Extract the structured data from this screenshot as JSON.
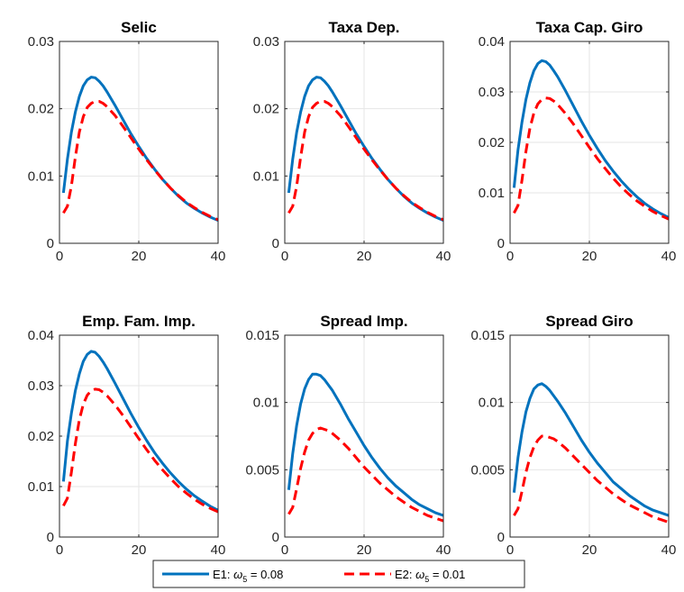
{
  "colors": {
    "e1": "#0072BD",
    "e2": "#FF0000",
    "grid": "#e6e6e6",
    "axis": "#262626"
  },
  "legend": {
    "placement": "bottom-center",
    "e1": {
      "prefix": "E1: ",
      "omega": "ω",
      "sub": "5",
      "value": " = 0.08"
    },
    "e2": {
      "prefix": "E2: ",
      "omega": "ω",
      "sub": "5",
      "value": " = 0.01"
    }
  },
  "chart_data": [
    {
      "type": "line",
      "title": "Selic",
      "xlim": [
        0,
        40
      ],
      "ylim": [
        0,
        0.03
      ],
      "xticks": [
        0,
        20,
        40
      ],
      "yticks": [
        0,
        0.01,
        0.02,
        0.03
      ],
      "yticklabels": [
        "0",
        "0.01",
        "0.02",
        "0.03"
      ],
      "grid": true,
      "series": [
        {
          "name": "E1: ω5 = 0.08",
          "style": "solid",
          "x": [
            1,
            2,
            3,
            4,
            5,
            6,
            7,
            8,
            9,
            10,
            11,
            12,
            14,
            16,
            18,
            20,
            22,
            24,
            26,
            28,
            30,
            32,
            34,
            36,
            38,
            40
          ],
          "y": [
            0.0075,
            0.0125,
            0.0165,
            0.0195,
            0.0218,
            0.0234,
            0.0243,
            0.0247,
            0.0246,
            0.0241,
            0.0234,
            0.0225,
            0.0205,
            0.0184,
            0.0163,
            0.0144,
            0.0126,
            0.011,
            0.0095,
            0.0082,
            0.007,
            0.006,
            0.0052,
            0.0045,
            0.0039,
            0.0034
          ]
        },
        {
          "name": "E2: ω5 = 0.01",
          "style": "dashed",
          "x": [
            1,
            2,
            3,
            4,
            5,
            6,
            7,
            8,
            9,
            10,
            11,
            12,
            14,
            16,
            18,
            20,
            22,
            24,
            26,
            28,
            30,
            32,
            34,
            36,
            38,
            40
          ],
          "y": [
            0.0045,
            0.0055,
            0.0085,
            0.0128,
            0.0165,
            0.0188,
            0.0202,
            0.0208,
            0.0211,
            0.0211,
            0.0208,
            0.0203,
            0.019,
            0.0174,
            0.0157,
            0.014,
            0.0124,
            0.0109,
            0.0095,
            0.0082,
            0.0071,
            0.0061,
            0.0053,
            0.0046,
            0.004,
            0.0035
          ]
        }
      ]
    },
    {
      "type": "line",
      "title": "Taxa Dep.",
      "xlim": [
        0,
        40
      ],
      "ylim": [
        0,
        0.03
      ],
      "xticks": [
        0,
        20,
        40
      ],
      "yticks": [
        0,
        0.01,
        0.02,
        0.03
      ],
      "yticklabels": [
        "0",
        "0.01",
        "0.02",
        "0.03"
      ],
      "grid": true,
      "series": [
        {
          "name": "E1: ω5 = 0.08",
          "style": "solid",
          "x": [
            1,
            2,
            3,
            4,
            5,
            6,
            7,
            8,
            9,
            10,
            11,
            12,
            14,
            16,
            18,
            20,
            22,
            24,
            26,
            28,
            30,
            32,
            34,
            36,
            38,
            40
          ],
          "y": [
            0.0075,
            0.0125,
            0.0165,
            0.0195,
            0.0218,
            0.0234,
            0.0243,
            0.0247,
            0.0246,
            0.0241,
            0.0234,
            0.0225,
            0.0205,
            0.0184,
            0.0163,
            0.0144,
            0.0126,
            0.011,
            0.0095,
            0.0082,
            0.007,
            0.006,
            0.0052,
            0.0045,
            0.0039,
            0.0034
          ]
        },
        {
          "name": "E2: ω5 = 0.01",
          "style": "dashed",
          "x": [
            1,
            2,
            3,
            4,
            5,
            6,
            7,
            8,
            9,
            10,
            11,
            12,
            14,
            16,
            18,
            20,
            22,
            24,
            26,
            28,
            30,
            32,
            34,
            36,
            38,
            40
          ],
          "y": [
            0.0045,
            0.0055,
            0.0085,
            0.0128,
            0.0165,
            0.0188,
            0.0202,
            0.0208,
            0.0211,
            0.0211,
            0.0208,
            0.0203,
            0.019,
            0.0174,
            0.0157,
            0.014,
            0.0124,
            0.0109,
            0.0095,
            0.0082,
            0.0071,
            0.0061,
            0.0053,
            0.0046,
            0.004,
            0.0035
          ]
        }
      ]
    },
    {
      "type": "line",
      "title": "Taxa Cap. Giro",
      "xlim": [
        0,
        40
      ],
      "ylim": [
        0,
        0.04
      ],
      "xticks": [
        0,
        20,
        40
      ],
      "yticks": [
        0,
        0.01,
        0.02,
        0.03,
        0.04
      ],
      "yticklabels": [
        "0",
        "0.01",
        "0.02",
        "0.03",
        "0.04"
      ],
      "grid": true,
      "series": [
        {
          "name": "E1: ω5 = 0.08",
          "style": "solid",
          "x": [
            1,
            2,
            3,
            4,
            5,
            6,
            7,
            8,
            9,
            10,
            11,
            12,
            14,
            16,
            18,
            20,
            22,
            24,
            26,
            28,
            30,
            32,
            34,
            36,
            38,
            40
          ],
          "y": [
            0.011,
            0.0185,
            0.024,
            0.0285,
            0.0318,
            0.0342,
            0.0356,
            0.0362,
            0.036,
            0.0353,
            0.0342,
            0.033,
            0.0302,
            0.0272,
            0.0242,
            0.0214,
            0.0188,
            0.0164,
            0.0143,
            0.0124,
            0.0107,
            0.0092,
            0.0079,
            0.0068,
            0.0059,
            0.0051
          ]
        },
        {
          "name": "E2: ω5 = 0.01",
          "style": "dashed",
          "x": [
            1,
            2,
            3,
            4,
            5,
            6,
            7,
            8,
            9,
            10,
            11,
            12,
            14,
            16,
            18,
            20,
            22,
            24,
            26,
            28,
            30,
            32,
            34,
            36,
            38,
            40
          ],
          "y": [
            0.006,
            0.0075,
            0.0125,
            0.0182,
            0.0228,
            0.0258,
            0.0276,
            0.0285,
            0.0288,
            0.0287,
            0.0282,
            0.0275,
            0.0257,
            0.0236,
            0.0213,
            0.019,
            0.0168,
            0.0148,
            0.0129,
            0.0112,
            0.0097,
            0.0084,
            0.0073,
            0.0063,
            0.0055,
            0.0048
          ]
        }
      ]
    },
    {
      "type": "line",
      "title": "Emp. Fam. Imp.",
      "xlim": [
        0,
        40
      ],
      "ylim": [
        0,
        0.04
      ],
      "xticks": [
        0,
        20,
        40
      ],
      "yticks": [
        0,
        0.01,
        0.02,
        0.03,
        0.04
      ],
      "yticklabels": [
        "0",
        "0.01",
        "0.02",
        "0.03",
        "0.04"
      ],
      "grid": true,
      "series": [
        {
          "name": "E1: ω5 = 0.08",
          "style": "solid",
          "x": [
            1,
            2,
            3,
            4,
            5,
            6,
            7,
            8,
            9,
            10,
            11,
            12,
            14,
            16,
            18,
            20,
            22,
            24,
            26,
            28,
            30,
            32,
            34,
            36,
            38,
            40
          ],
          "y": [
            0.011,
            0.019,
            0.0245,
            0.029,
            0.0323,
            0.0348,
            0.0362,
            0.0368,
            0.0366,
            0.0358,
            0.0347,
            0.0334,
            0.0305,
            0.0275,
            0.0245,
            0.0217,
            0.0191,
            0.0167,
            0.0146,
            0.0127,
            0.011,
            0.0095,
            0.0082,
            0.0071,
            0.0061,
            0.0053
          ]
        },
        {
          "name": "E2: ω5 = 0.01",
          "style": "dashed",
          "x": [
            1,
            2,
            3,
            4,
            5,
            6,
            7,
            8,
            9,
            10,
            11,
            12,
            14,
            16,
            18,
            20,
            22,
            24,
            26,
            28,
            30,
            32,
            34,
            36,
            38,
            40
          ],
          "y": [
            0.0062,
            0.0077,
            0.0128,
            0.0185,
            0.0232,
            0.0263,
            0.0281,
            0.029,
            0.0293,
            0.0292,
            0.0287,
            0.028,
            0.0262,
            0.0241,
            0.0218,
            0.0195,
            0.0173,
            0.0152,
            0.0133,
            0.0116,
            0.01,
            0.0087,
            0.0075,
            0.0065,
            0.0057,
            0.005
          ]
        }
      ]
    },
    {
      "type": "line",
      "title": "Spread Imp.",
      "xlim": [
        0,
        40
      ],
      "ylim": [
        0,
        0.015
      ],
      "xticks": [
        0,
        20,
        40
      ],
      "yticks": [
        0,
        0.005,
        0.01,
        0.015
      ],
      "yticklabels": [
        "0",
        "0.005",
        "0.01",
        "0.015"
      ],
      "grid": true,
      "series": [
        {
          "name": "E1: ω5 = 0.08",
          "style": "solid",
          "x": [
            1,
            2,
            3,
            4,
            5,
            6,
            7,
            8,
            9,
            10,
            11,
            12,
            14,
            16,
            18,
            20,
            22,
            24,
            26,
            28,
            30,
            32,
            34,
            36,
            38,
            40
          ],
          "y": [
            0.0035,
            0.0062,
            0.0083,
            0.0099,
            0.011,
            0.0117,
            0.0121,
            0.0121,
            0.012,
            0.0117,
            0.0113,
            0.0109,
            0.0099,
            0.0088,
            0.0078,
            0.0068,
            0.0059,
            0.0051,
            0.0044,
            0.0038,
            0.0033,
            0.0028,
            0.0024,
            0.0021,
            0.0018,
            0.0016
          ]
        },
        {
          "name": "E2: ω5 = 0.01",
          "style": "dashed",
          "x": [
            1,
            2,
            3,
            4,
            5,
            6,
            7,
            8,
            9,
            10,
            11,
            12,
            14,
            16,
            18,
            20,
            22,
            24,
            26,
            28,
            30,
            32,
            34,
            36,
            38,
            40
          ],
          "y": [
            0.0017,
            0.0022,
            0.0036,
            0.0051,
            0.0063,
            0.0072,
            0.0077,
            0.008,
            0.0081,
            0.008,
            0.0079,
            0.0077,
            0.0072,
            0.0066,
            0.0059,
            0.0052,
            0.0046,
            0.004,
            0.0035,
            0.003,
            0.0026,
            0.0022,
            0.0019,
            0.0016,
            0.0014,
            0.0012
          ]
        }
      ]
    },
    {
      "type": "line",
      "title": "Spread Giro",
      "xlim": [
        0,
        40
      ],
      "ylim": [
        0,
        0.015
      ],
      "xticks": [
        0,
        20,
        40
      ],
      "yticks": [
        0,
        0.005,
        0.01,
        0.015
      ],
      "yticklabels": [
        "0",
        "0.005",
        "0.01",
        "0.015"
      ],
      "grid": true,
      "series": [
        {
          "name": "E1: ω5 = 0.08",
          "style": "solid",
          "x": [
            1,
            2,
            3,
            4,
            5,
            6,
            7,
            8,
            9,
            10,
            11,
            12,
            14,
            16,
            18,
            20,
            22,
            24,
            26,
            28,
            30,
            32,
            34,
            36,
            38,
            40
          ],
          "y": [
            0.0033,
            0.0059,
            0.0078,
            0.0093,
            0.0103,
            0.011,
            0.0113,
            0.0114,
            0.0112,
            0.0109,
            0.0105,
            0.0101,
            0.0092,
            0.0082,
            0.0072,
            0.0063,
            0.0055,
            0.0048,
            0.0041,
            0.0036,
            0.0031,
            0.0027,
            0.0023,
            0.002,
            0.0018,
            0.0016
          ]
        },
        {
          "name": "E2: ω5 = 0.01",
          "style": "dashed",
          "x": [
            1,
            2,
            3,
            4,
            5,
            6,
            7,
            8,
            9,
            10,
            11,
            12,
            14,
            16,
            18,
            20,
            22,
            24,
            26,
            28,
            30,
            32,
            34,
            36,
            38,
            40
          ],
          "y": [
            0.0016,
            0.0021,
            0.0034,
            0.0048,
            0.0059,
            0.0067,
            0.0072,
            0.0075,
            0.0075,
            0.0074,
            0.0073,
            0.0071,
            0.0066,
            0.006,
            0.0054,
            0.0048,
            0.0042,
            0.0037,
            0.0032,
            0.0028,
            0.0024,
            0.0021,
            0.0018,
            0.0015,
            0.0013,
            0.0011
          ]
        }
      ]
    }
  ]
}
